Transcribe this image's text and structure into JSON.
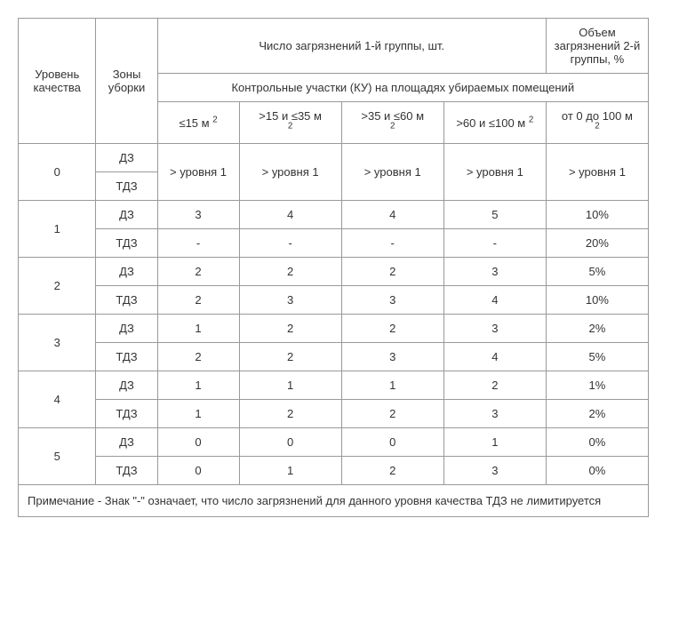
{
  "table": {
    "header_col1": "Уровень качества",
    "header_col2": "Зоны уборки",
    "header_group1": "Число загрязнений 1-й группы, шт.",
    "header_group2": "Объем загрязнений 2-й группы, %",
    "header_subrow": "Контрольные участки (КУ) на площадях убираемых помещений",
    "col_h1_pre": "≤15 м ",
    "col_h1_sup": "2",
    "col_h2_pre": ">15 и ≤35 м",
    "col_h2_sup": "2",
    "col_h3_pre": ">35 и ≤60 м",
    "col_h3_sup": "2",
    "col_h4_pre": ">60 и ≤100 м ",
    "col_h4_sup": "2",
    "col_h5_pre": "от 0 до 100 м",
    "col_h5_sup": "2",
    "levels": [
      "0",
      "1",
      "2",
      "3",
      "4",
      "5"
    ],
    "zone_dz": "ДЗ",
    "zone_tdz": "ТДЗ",
    "row0_dz": [
      "> уровня 1",
      "> уровня 1",
      "> уровня 1",
      "> уровня 1",
      "> уровня 1"
    ],
    "r1_dz": [
      "3",
      "4",
      "4",
      "5",
      "10%"
    ],
    "r1_tdz": [
      "-",
      "-",
      "-",
      "-",
      "20%"
    ],
    "r2_dz": [
      "2",
      "2",
      "2",
      "3",
      "5%"
    ],
    "r2_tdz": [
      "2",
      "3",
      "3",
      "4",
      "10%"
    ],
    "r3_dz": [
      "1",
      "2",
      "2",
      "3",
      "2%"
    ],
    "r3_tdz": [
      "2",
      "2",
      "3",
      "4",
      "5%"
    ],
    "r4_dz": [
      "1",
      "1",
      "1",
      "2",
      "1%"
    ],
    "r4_tdz": [
      "1",
      "2",
      "2",
      "3",
      "2%"
    ],
    "r5_dz": [
      "0",
      "0",
      "0",
      "1",
      "0%"
    ],
    "r5_tdz": [
      "0",
      "1",
      "2",
      "3",
      "0%"
    ],
    "note": "Примечание - Знак \"-\" означает, что число загрязнений для данного уровня качества ТДЗ не лимитируется"
  },
  "style": {
    "font_family": "Arial",
    "font_size_pt": 10,
    "text_color": "#333333",
    "border_color": "#999999",
    "background_color": "#ffffff"
  }
}
